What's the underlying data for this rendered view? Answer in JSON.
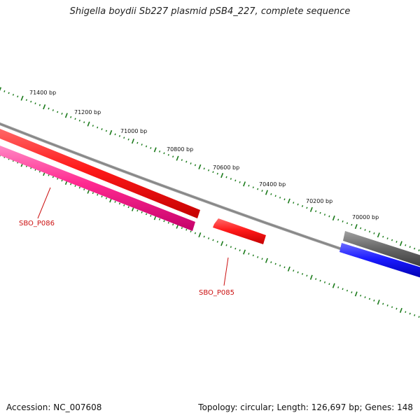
{
  "title": "Shigella boydii Sb227 plasmid pSB4_227, complete sequence",
  "footer": {
    "accession": "Accession: NC_007608",
    "summary": "Topology: circular; Length: 126,697 bp; Genes: 148"
  },
  "ruler_labels": [
    "71400 bp",
    "71200 bp",
    "71000 bp",
    "70800 bp",
    "70600 bp",
    "70400 bp",
    "70200 bp",
    "70000 bp"
  ],
  "gene_labels": [
    "SBO_P086",
    "SBO_P085"
  ],
  "colors": {
    "tick": "#1a7a1a",
    "backbone": "#888888",
    "gene_red": "#ff1a1a",
    "gene_pink": "#ff2a90",
    "gene_blue": "#1a1aff",
    "gene_gray": "#6a6a6a",
    "label_red": "#cc1111"
  }
}
